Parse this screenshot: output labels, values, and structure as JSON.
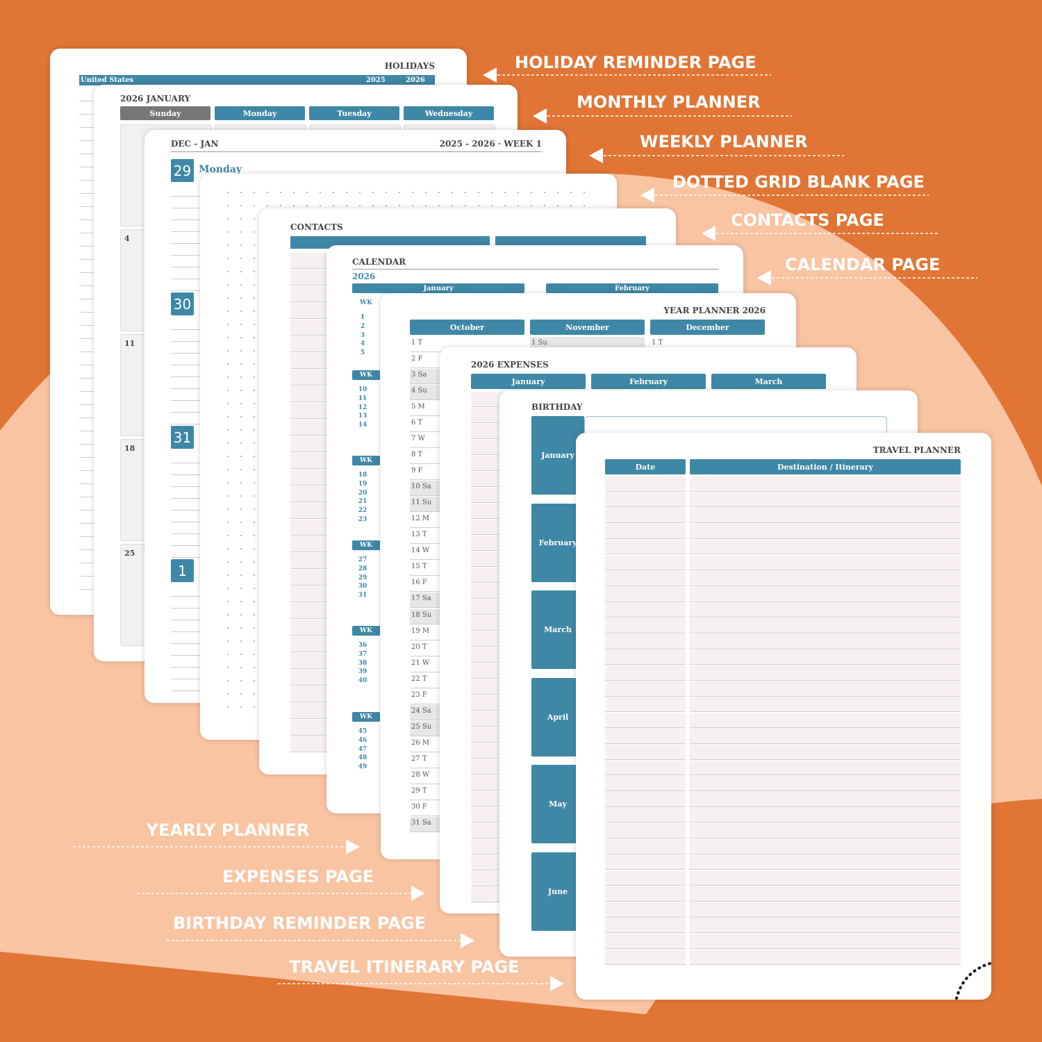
{
  "callouts_right": [
    "HOLIDAY REMINDER PAGE",
    "MONTHLY PLANNER",
    "WEEKLY PLANNER",
    "DOTTED GRID BLANK PAGE",
    "CONTACTS PAGE",
    "CALENDAR PAGE"
  ],
  "callouts_left": [
    "YEARLY PLANNER",
    "EXPENSES PAGE",
    "BIRTHDAY REMINDER PAGE",
    "TRAVEL ITINERARY PAGE"
  ],
  "holidays": {
    "title": "HOLIDAYS",
    "country": "United States",
    "years": [
      "2025",
      "2026"
    ]
  },
  "monthly": {
    "title": "2026 JANUARY",
    "weekdays": [
      "Sunday",
      "Monday",
      "Tuesday",
      "Wednesday"
    ],
    "dates": [
      "4",
      "11",
      "18",
      "25"
    ]
  },
  "weekly": {
    "left": "DEC - JAN",
    "right": "2025 - 2026 · WEEK 1",
    "days": [
      "29",
      "30",
      "31",
      "1"
    ],
    "first_day": "Monday"
  },
  "contacts": {
    "title": "CONTACTS"
  },
  "calendar": {
    "title": "CALENDAR",
    "year": "2026",
    "months": [
      "January",
      "February"
    ],
    "wk": "WK",
    "weeks": [
      [
        "1",
        "2",
        "3",
        "4",
        "5"
      ],
      [
        "10",
        "11",
        "12",
        "13",
        "14"
      ],
      [
        "18",
        "19",
        "20",
        "21",
        "22",
        "23"
      ],
      [
        "27",
        "28",
        "29",
        "30",
        "31"
      ],
      [
        "36",
        "37",
        "38",
        "39",
        "40"
      ],
      [
        "45",
        "46",
        "47",
        "48",
        "49"
      ]
    ]
  },
  "year_planner": {
    "title": "YEAR PLANNER 2026",
    "months": [
      "October",
      "November",
      "December"
    ],
    "october_days": [
      "1 T",
      "2 F",
      "3 Sa",
      "4 Su",
      "5 M",
      "6 T",
      "7 W",
      "8 T",
      "9 F",
      "10 Sa",
      "11 Su",
      "12 M",
      "13 T",
      "14 W",
      "15 T",
      "16 F",
      "17 Sa",
      "18 Su",
      "19 M",
      "20 T",
      "21 W",
      "22 T",
      "23 F",
      "24 Sa",
      "25 Su",
      "26 M",
      "27 T",
      "28 W",
      "29 T",
      "30 F",
      "31 Sa"
    ],
    "november_first": "1 Su",
    "december_first": "1 T"
  },
  "expenses": {
    "title": "2026 EXPENSES",
    "months": [
      "January",
      "February",
      "March"
    ]
  },
  "birthday": {
    "title": "BIRTHDAY",
    "months": [
      "January",
      "February",
      "March",
      "April",
      "May",
      "June"
    ]
  },
  "travel": {
    "title": "TRAVEL PLANNER",
    "columns": [
      "Date",
      "Destination / Itinerary"
    ]
  }
}
